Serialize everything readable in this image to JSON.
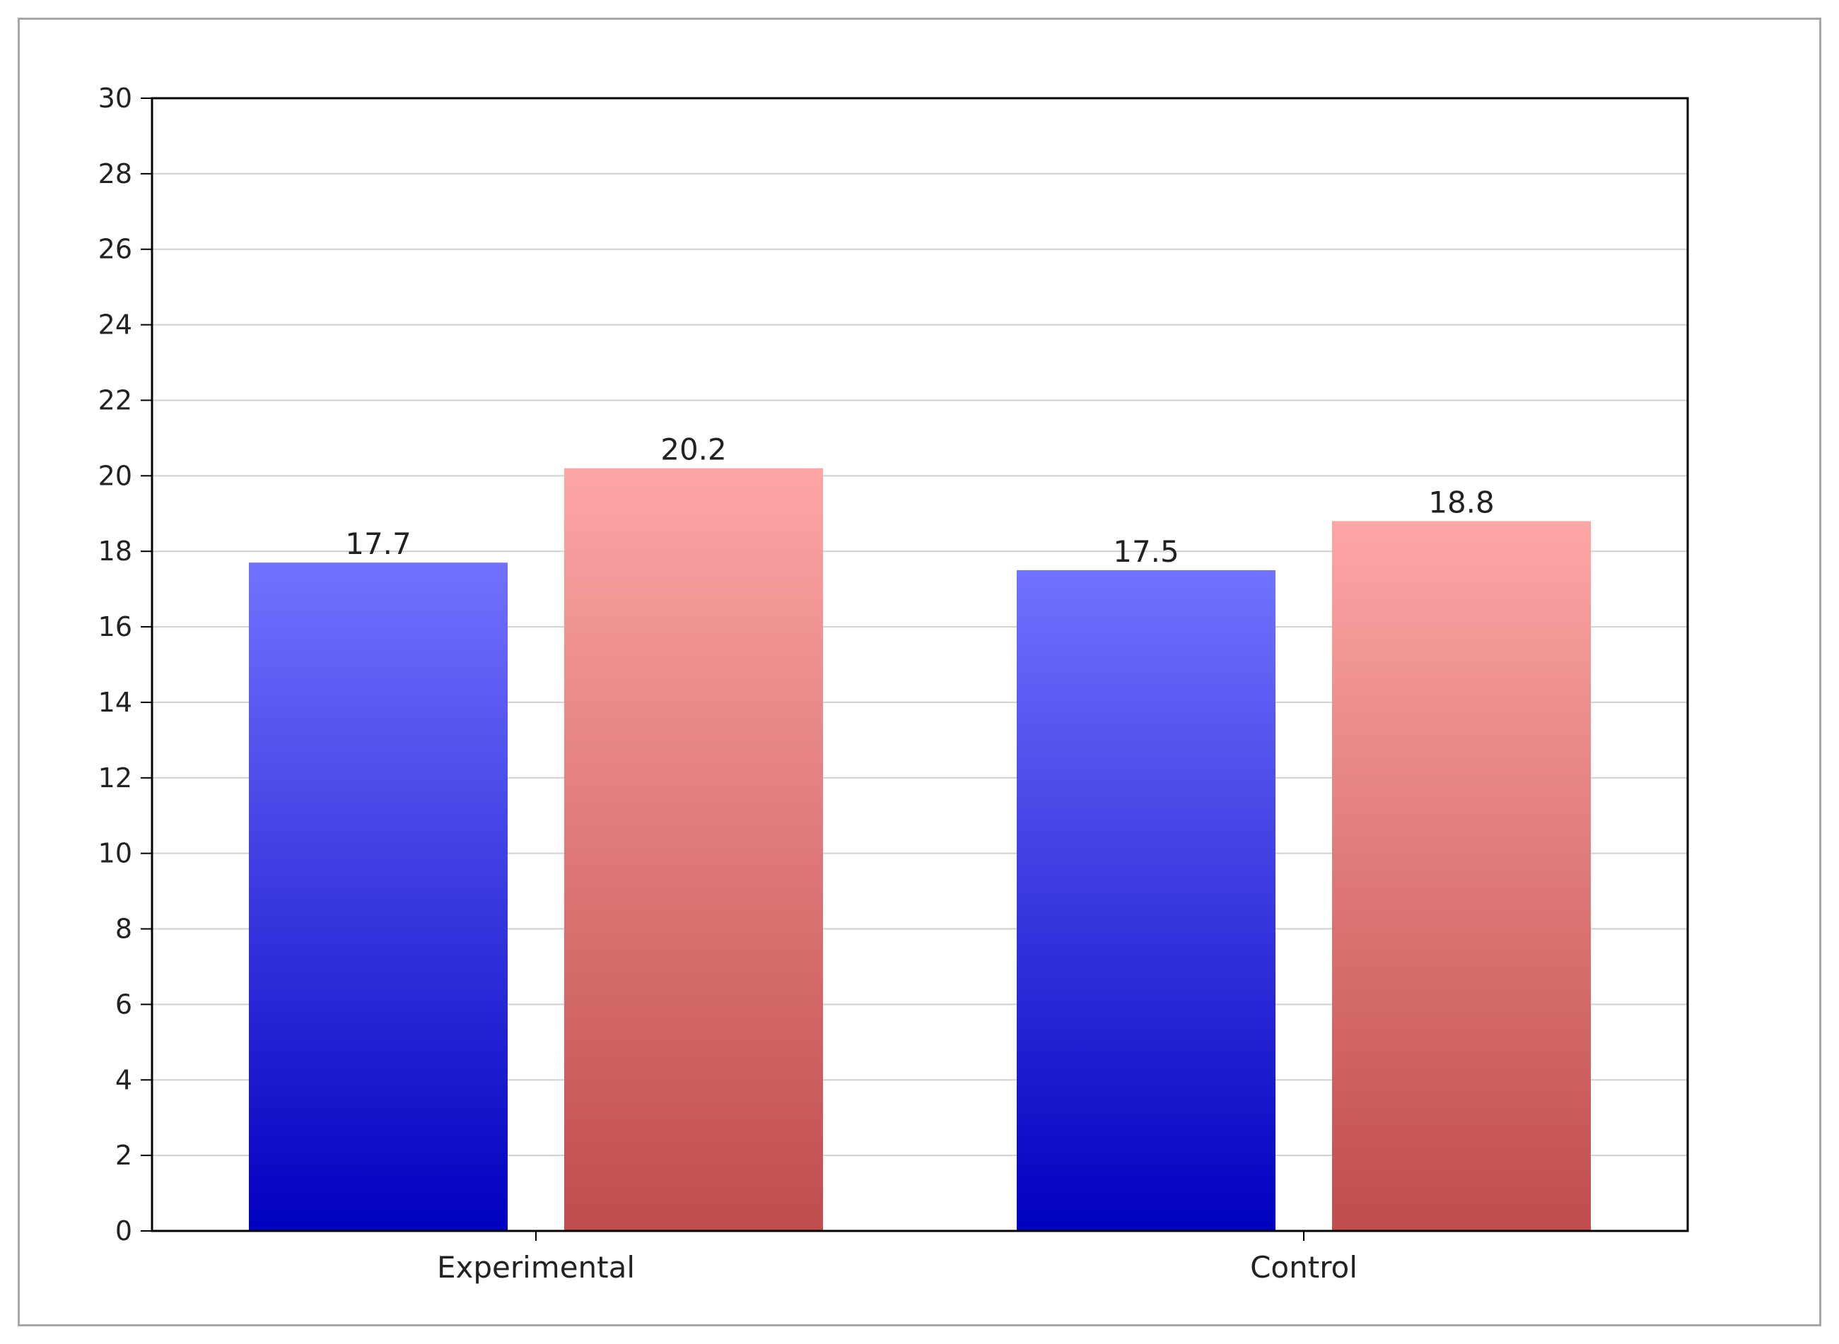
{
  "chart_data": {
    "type": "bar",
    "title": "",
    "xlabel": "",
    "ylabel": "",
    "categories": [
      "Experimental",
      "Control"
    ],
    "series": [
      {
        "values": [
          17.7,
          17.5
        ],
        "color_top": "#7272ff",
        "color_bottom": "#0000c0"
      },
      {
        "values": [
          20.2,
          18.8
        ],
        "color_top": "#fda6a6",
        "color_bottom": "#c04c4c"
      }
    ],
    "data_labels": [
      [
        "17.7",
        "17.5"
      ],
      [
        "20.2",
        "18.8"
      ]
    ],
    "ylim": [
      0,
      30
    ],
    "yticks": [
      0,
      2,
      4,
      6,
      8,
      10,
      12,
      14,
      16,
      18,
      20,
      22,
      24,
      26,
      28,
      30
    ],
    "grid": true,
    "legend": "none"
  }
}
